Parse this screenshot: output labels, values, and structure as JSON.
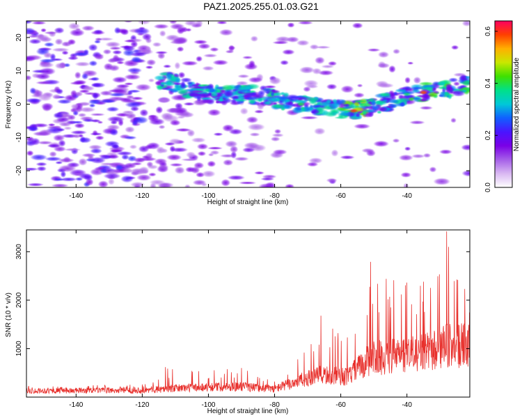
{
  "title": "PAZ1.2025.255.01.03.G21",
  "colors": {
    "spectral_ramp": [
      "#ffffff",
      "#d9b8f2",
      "#a55ee8",
      "#7a00e6",
      "#4a14ff",
      "#1060ff",
      "#00c8d8",
      "#00e08a",
      "#3fe000",
      "#c8e800",
      "#ffb000",
      "#ff4000",
      "#ff0060"
    ],
    "snr_line": "#e8302c",
    "frame": "#000000"
  },
  "chart_data": [
    {
      "id": "spectrogram",
      "type": "heatmap",
      "xlabel": "Height of straight line (km)",
      "ylabel": "Frequency (Hz)",
      "xlim": [
        -155,
        -21
      ],
      "ylim": [
        -25,
        25
      ],
      "xticks": [
        -140,
        -120,
        -100,
        -80,
        -60,
        -40
      ],
      "yticks": [
        -20,
        -10,
        0,
        10,
        20
      ],
      "ridge": [
        {
          "x": -112,
          "f": 7.0
        },
        {
          "x": -105,
          "f": 4.0
        },
        {
          "x": -100,
          "f": 3.0
        },
        {
          "x": -90,
          "f": 3.0
        },
        {
          "x": -82,
          "f": 2.5
        },
        {
          "x": -75,
          "f": 0.0
        },
        {
          "x": -67,
          "f": -0.5
        },
        {
          "x": -58,
          "f": -2.0
        },
        {
          "x": -52,
          "f": -1.0
        },
        {
          "x": -45,
          "f": 1.0
        },
        {
          "x": -38,
          "f": 3.0
        },
        {
          "x": -32,
          "f": 4.0
        },
        {
          "x": -25,
          "f": 5.0
        },
        {
          "x": -21,
          "f": 6.0
        }
      ],
      "colorbar": {
        "label": "Normalized spectral amplitude",
        "range": [
          0.0,
          0.64
        ],
        "ticks": [
          0.0,
          0.2,
          0.4,
          0.6
        ],
        "tick_labels": [
          "0.0",
          "0.2",
          "0.4",
          "0.6"
        ]
      }
    },
    {
      "id": "snr",
      "type": "line",
      "xlabel": "Height of straight line (km)",
      "ylabel": "SNR (10 * v/v)",
      "xlim": [
        -155,
        -21
      ],
      "ylim": [
        0,
        3450
      ],
      "xticks": [
        -140,
        -120,
        -100,
        -80,
        -60,
        -40
      ],
      "yticks": [
        1000,
        2000,
        3000
      ],
      "envelope": [
        {
          "x": -155,
          "mean": 130,
          "peak": 230
        },
        {
          "x": -120,
          "mean": 140,
          "peak": 260
        },
        {
          "x": -113,
          "mean": 170,
          "peak": 620
        },
        {
          "x": -105,
          "mean": 200,
          "peak": 540
        },
        {
          "x": -90,
          "mean": 220,
          "peak": 600
        },
        {
          "x": -80,
          "mean": 170,
          "peak": 320
        },
        {
          "x": -73,
          "mean": 330,
          "peak": 780
        },
        {
          "x": -66,
          "mean": 450,
          "peak": 1680
        },
        {
          "x": -58,
          "mean": 420,
          "peak": 1230
        },
        {
          "x": -51,
          "mean": 800,
          "peak": 2790
        },
        {
          "x": -44,
          "mean": 850,
          "peak": 2410
        },
        {
          "x": -35,
          "mean": 900,
          "peak": 2380
        },
        {
          "x": -28,
          "mean": 1050,
          "peak": 3420
        },
        {
          "x": -21,
          "mean": 1050,
          "peak": 2290
        }
      ]
    }
  ]
}
